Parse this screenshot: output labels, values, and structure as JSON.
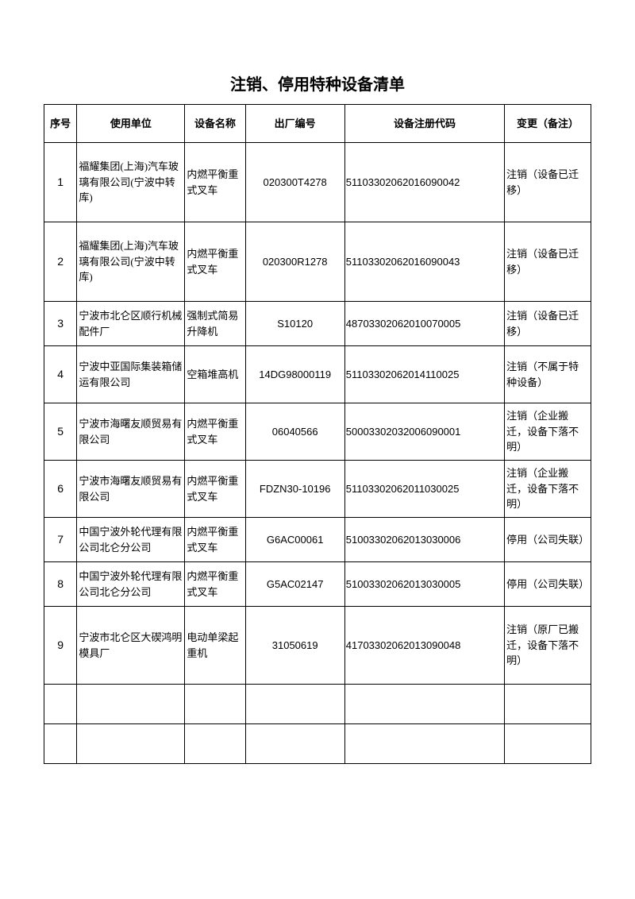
{
  "title": "注销、停用特种设备清单",
  "headers": {
    "seq": "序号",
    "company": "使用单位",
    "equipment": "设备名称",
    "factory_num": "出厂编号",
    "reg_code": "设备注册代码",
    "remark": "变更（备注）"
  },
  "rows": [
    {
      "seq": "1",
      "company": "福耀集团(上海)汽车玻璃有限公司(宁波中转库)",
      "equipment": "内燃平衡重式叉车",
      "factory_num": "020300T4278",
      "reg_code": "51103302062016090042",
      "remark": "注销（设备已迁移）",
      "row_class": "row-tall"
    },
    {
      "seq": "2",
      "company": "福耀集团(上海)汽车玻璃有限公司(宁波中转库)",
      "equipment": "内燃平衡重式叉车",
      "factory_num": "020300R1278",
      "reg_code": "51103302062016090043",
      "remark": "注销（设备已迁移）",
      "row_class": "row-tall"
    },
    {
      "seq": "3",
      "company": "宁波市北仑区顺行机械配件厂",
      "equipment": "强制式简易升降机",
      "factory_num": "S10120",
      "reg_code": "48703302062010070005",
      "remark": "注销（设备已迁移）",
      "row_class": "row-med"
    },
    {
      "seq": "4",
      "company": "宁波中亚国际集装箱储运有限公司",
      "equipment": "空箱堆高机",
      "factory_num": "14DG98000119",
      "reg_code": "51103302062014110025",
      "remark": "注销（不属于特种设备）",
      "row_class": "row-med2"
    },
    {
      "seq": "5",
      "company": "宁波市海曙友顺贸易有限公司",
      "equipment": "内燃平衡重式叉车",
      "factory_num": "06040566",
      "reg_code": "50003302032006090001",
      "remark": "注销（企业搬迁，设备下落不明）",
      "row_class": "row-med2"
    },
    {
      "seq": "6",
      "company": "宁波市海曙友顺贸易有限公司",
      "equipment": "内燃平衡重式叉车",
      "factory_num": "FDZN30-10196",
      "reg_code": "51103302062011030025",
      "remark": "注销（企业搬迁，设备下落不明）",
      "row_class": "row-med2"
    },
    {
      "seq": "7",
      "company": "中国宁波外轮代理有限公司北仑分公司",
      "equipment": "内燃平衡重式叉车",
      "factory_num": "G6AC00061",
      "reg_code": "51003302062013030006",
      "remark": "停用（公司失联）",
      "row_class": "row-med"
    },
    {
      "seq": "8",
      "company": "中国宁波外轮代理有限公司北仑分公司",
      "equipment": "内燃平衡重式叉车",
      "factory_num": "G5AC02147",
      "reg_code": "51003302062013030005",
      "remark": "停用（公司失联）",
      "row_class": "row-med"
    },
    {
      "seq": "9",
      "company": "宁波市北仑区大碶鸿明模具厂",
      "equipment": "电动单梁起重机",
      "factory_num": "31050619",
      "reg_code": "41703302062013090048",
      "remark": "注销（原厂已搬迁，设备下落不明）",
      "row_class": "row-big"
    }
  ],
  "empty_rows": 2
}
